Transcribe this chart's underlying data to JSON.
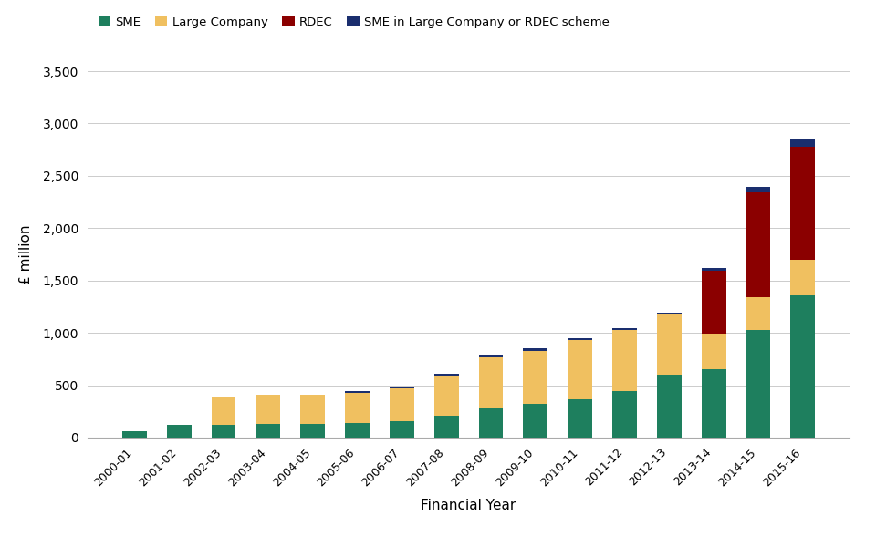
{
  "years": [
    "2000-01",
    "2001-02",
    "2002-03",
    "2003-04",
    "2004-05",
    "2005-06",
    "2006-07",
    "2007-08",
    "2008-09",
    "2009-10",
    "2010-11",
    "2011-12",
    "2012-13",
    "2013-14",
    "2014-15",
    "2015-16"
  ],
  "sme": [
    60,
    120,
    120,
    130,
    130,
    140,
    160,
    210,
    280,
    320,
    370,
    440,
    600,
    650,
    1025,
    1360
  ],
  "large_company": [
    0,
    0,
    270,
    280,
    275,
    285,
    310,
    380,
    490,
    510,
    560,
    590,
    580,
    340,
    315,
    335
  ],
  "rdec": [
    0,
    0,
    0,
    0,
    0,
    0,
    0,
    0,
    0,
    0,
    0,
    0,
    0,
    600,
    1000,
    1080
  ],
  "sme_in_large": [
    0,
    0,
    0,
    0,
    0,
    20,
    20,
    20,
    20,
    20,
    15,
    15,
    15,
    30,
    55,
    80
  ],
  "colors": {
    "sme": "#1e7f5e",
    "large_company": "#f0c060",
    "rdec": "#8b0000",
    "sme_in_large": "#1a2e6e"
  },
  "xlabel": "Financial Year",
  "ylabel": "£ million",
  "ylim": [
    0,
    3500
  ],
  "yticks": [
    0,
    500,
    1000,
    1500,
    2000,
    2500,
    3000,
    3500
  ],
  "legend_labels": [
    "SME",
    "Large Company",
    "RDEC",
    "SME in Large Company or RDEC scheme"
  ],
  "background_color": "#ffffff",
  "grid_color": "#cccccc"
}
